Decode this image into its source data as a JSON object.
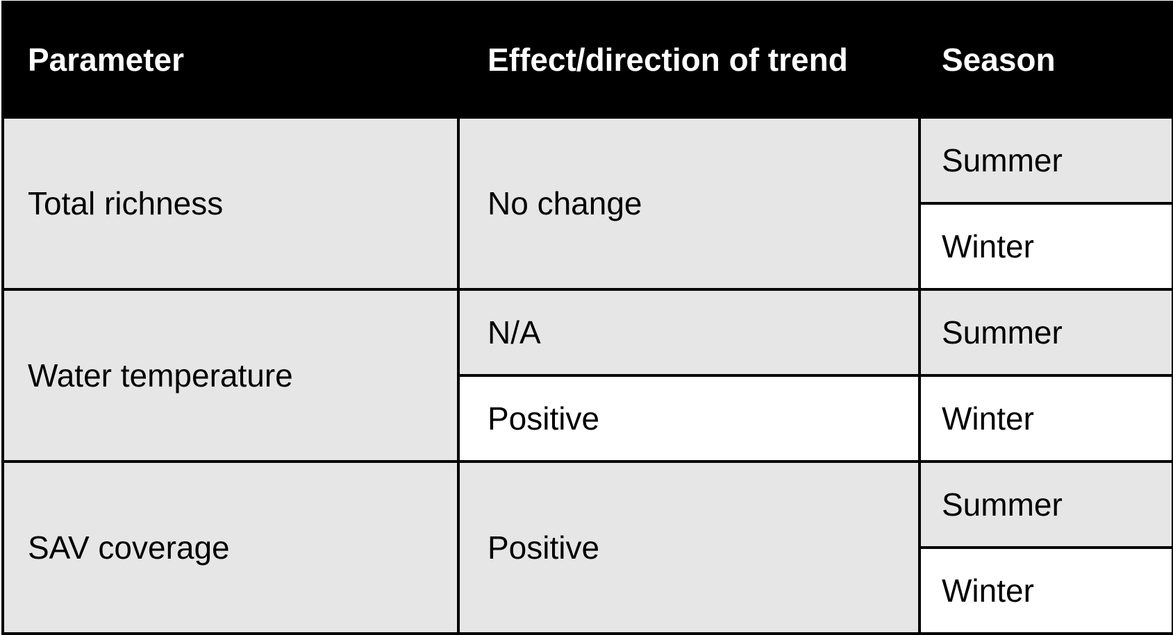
{
  "table": {
    "headers": [
      "Parameter",
      "Effect/direction of trend",
      "Season"
    ],
    "rows": [
      {
        "parameter": "Total richness",
        "effects": [
          "No change"
        ],
        "seasons": [
          "Summer",
          "Winter"
        ]
      },
      {
        "parameter": "Water temperature",
        "effects": [
          "N/A",
          "Positive"
        ],
        "seasons": [
          "Summer",
          "Winter"
        ]
      },
      {
        "parameter": "SAV coverage",
        "effects": [
          "Positive"
        ],
        "seasons": [
          "Summer",
          "Winter"
        ]
      }
    ]
  },
  "colors": {
    "header_background": "#000000",
    "header_text": "#ffffff",
    "shaded_cell": "#e6e6e6",
    "white_cell": "#ffffff",
    "border": "#000000"
  }
}
